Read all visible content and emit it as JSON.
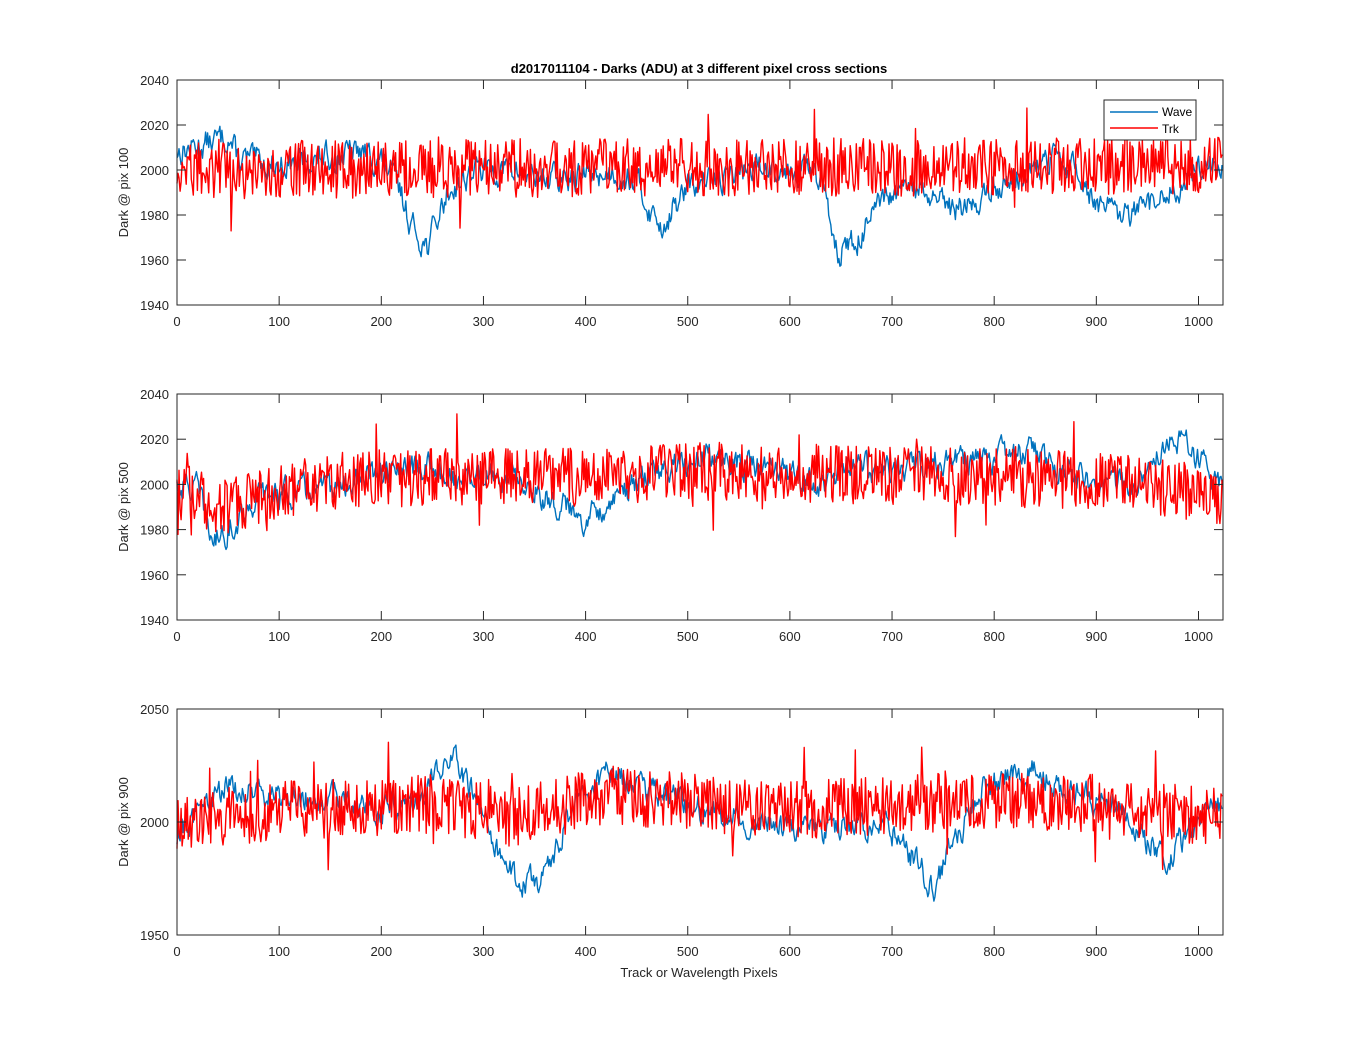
{
  "title": "d2017011104 - Darks (ADU) at 3 different pixel cross sections",
  "xlabel": "Track or Wavelength Pixels",
  "legend": [
    {
      "name": "Wave",
      "color": "#0072BD"
    },
    {
      "name": "Trk",
      "color": "#FF0000"
    }
  ],
  "chart_data": [
    {
      "type": "line",
      "title": "d2017011104 - Darks (ADU) at 3 different pixel cross sections",
      "ylabel": "Dark @ pix 100",
      "xlim": [
        0,
        1024
      ],
      "ylim": [
        1940,
        2040
      ],
      "xticks": [
        0,
        100,
        200,
        300,
        400,
        500,
        600,
        700,
        800,
        900,
        1000
      ],
      "yticks": [
        1940,
        1960,
        1980,
        2000,
        2020,
        2040
      ],
      "legend": "top-right",
      "series": [
        {
          "name": "Wave",
          "color": "#0072BD",
          "n": 1024,
          "base": 2002,
          "noise": 5,
          "segments": [
            [
              0,
              2008
            ],
            [
              30,
              2012
            ],
            [
              50,
              2015
            ],
            [
              60,
              2005
            ],
            [
              100,
              2002
            ],
            [
              180,
              2008
            ],
            [
              200,
              2004
            ],
            [
              215,
              1995
            ],
            [
              230,
              1975
            ],
            [
              245,
              1966
            ],
            [
              265,
              1990
            ],
            [
              290,
              2000
            ],
            [
              320,
              2000
            ],
            [
              350,
              1998
            ],
            [
              380,
              1995
            ],
            [
              400,
              1998
            ],
            [
              430,
              1999
            ],
            [
              450,
              1995
            ],
            [
              465,
              1980
            ],
            [
              475,
              1975
            ],
            [
              500,
              1992
            ],
            [
              540,
              1998
            ],
            [
              580,
              2002
            ],
            [
              620,
              2000
            ],
            [
              635,
              1990
            ],
            [
              648,
              1963
            ],
            [
              665,
              1968
            ],
            [
              690,
              1985
            ],
            [
              720,
              1992
            ],
            [
              745,
              1985
            ],
            [
              760,
              1982
            ],
            [
              780,
              1985
            ],
            [
              800,
              1992
            ],
            [
              830,
              1998
            ],
            [
              860,
              2005
            ],
            [
              880,
              2000
            ],
            [
              900,
              1985
            ],
            [
              925,
              1978
            ],
            [
              950,
              1983
            ],
            [
              980,
              1992
            ],
            [
              1000,
              2002
            ],
            [
              1024,
              2002
            ]
          ]
        },
        {
          "name": "Trk",
          "color": "#FF0000",
          "n": 1024,
          "base": 2002,
          "noise": 13,
          "segments": [
            [
              0,
              2000
            ],
            [
              1024,
              2002
            ]
          ]
        }
      ]
    },
    {
      "type": "line",
      "ylabel": "Dark @ pix 500",
      "xlim": [
        0,
        1024
      ],
      "ylim": [
        1940,
        2040
      ],
      "xticks": [
        0,
        100,
        200,
        300,
        400,
        500,
        600,
        700,
        800,
        900,
        1000
      ],
      "yticks": [
        1940,
        1960,
        1980,
        2000,
        2020,
        2040
      ],
      "series": [
        {
          "name": "Wave",
          "color": "#0072BD",
          "n": 1024,
          "base": 2002,
          "noise": 5,
          "segments": [
            [
              0,
              2000
            ],
            [
              20,
              1998
            ],
            [
              35,
              1975
            ],
            [
              50,
              1980
            ],
            [
              80,
              1995
            ],
            [
              150,
              1998
            ],
            [
              200,
              2004
            ],
            [
              250,
              2008
            ],
            [
              270,
              2002
            ],
            [
              300,
              2005
            ],
            [
              340,
              2000
            ],
            [
              380,
              1990
            ],
            [
              400,
              1985
            ],
            [
              420,
              1992
            ],
            [
              450,
              2000
            ],
            [
              480,
              2008
            ],
            [
              520,
              2012
            ],
            [
              560,
              2008
            ],
            [
              600,
              2005
            ],
            [
              630,
              2000
            ],
            [
              660,
              2008
            ],
            [
              700,
              2005
            ],
            [
              740,
              2010
            ],
            [
              800,
              2012
            ],
            [
              830,
              2015
            ],
            [
              860,
              2008
            ],
            [
              900,
              2000
            ],
            [
              940,
              2002
            ],
            [
              960,
              2016
            ],
            [
              990,
              2018
            ],
            [
              1010,
              2005
            ],
            [
              1024,
              1998
            ]
          ]
        },
        {
          "name": "Trk",
          "color": "#FF0000",
          "n": 1024,
          "base": 2002,
          "noise": 13,
          "segments": [
            [
              0,
              1998
            ],
            [
              40,
              1990
            ],
            [
              100,
              1998
            ],
            [
              200,
              2003
            ],
            [
              400,
              2003
            ],
            [
              500,
              2006
            ],
            [
              700,
              2004
            ],
            [
              900,
              2002
            ],
            [
              1024,
              1995
            ]
          ]
        }
      ]
    },
    {
      "type": "line",
      "xlabel": "Track or Wavelength Pixels",
      "ylabel": "Dark @ pix 900",
      "xlim": [
        0,
        1024
      ],
      "ylim": [
        1950,
        2050
      ],
      "xticks": [
        0,
        100,
        200,
        300,
        400,
        500,
        600,
        700,
        800,
        900,
        1000
      ],
      "yticks": [
        1950,
        2000,
        2050
      ],
      "series": [
        {
          "name": "Wave",
          "color": "#0072BD",
          "n": 1024,
          "base": 2008,
          "noise": 5,
          "segments": [
            [
              0,
              1995
            ],
            [
              20,
              2005
            ],
            [
              50,
              2015
            ],
            [
              100,
              2010
            ],
            [
              150,
              2012
            ],
            [
              200,
              2005
            ],
            [
              230,
              2010
            ],
            [
              250,
              2020
            ],
            [
              270,
              2028
            ],
            [
              290,
              2015
            ],
            [
              310,
              1990
            ],
            [
              330,
              1975
            ],
            [
              350,
              1972
            ],
            [
              370,
              1985
            ],
            [
              390,
              2010
            ],
            [
              420,
              2022
            ],
            [
              450,
              2015
            ],
            [
              500,
              2008
            ],
            [
              540,
              2002
            ],
            [
              580,
              2000
            ],
            [
              620,
              1995
            ],
            [
              660,
              1998
            ],
            [
              690,
              2000
            ],
            [
              720,
              1985
            ],
            [
              740,
              1970
            ],
            [
              760,
              1990
            ],
            [
              790,
              2015
            ],
            [
              810,
              2020
            ],
            [
              840,
              2022
            ],
            [
              870,
              2015
            ],
            [
              900,
              2010
            ],
            [
              930,
              2005
            ],
            [
              950,
              1990
            ],
            [
              970,
              1985
            ],
            [
              1000,
              2000
            ],
            [
              1024,
              2010
            ]
          ]
        },
        {
          "name": "Trk",
          "color": "#FF0000",
          "n": 1024,
          "base": 2005,
          "noise": 13,
          "segments": [
            [
              0,
              2000
            ],
            [
              100,
              2005
            ],
            [
              250,
              2008
            ],
            [
              330,
              2002
            ],
            [
              420,
              2012
            ],
            [
              600,
              2005
            ],
            [
              800,
              2010
            ],
            [
              900,
              2008
            ],
            [
              1024,
              2002
            ]
          ]
        }
      ]
    }
  ]
}
